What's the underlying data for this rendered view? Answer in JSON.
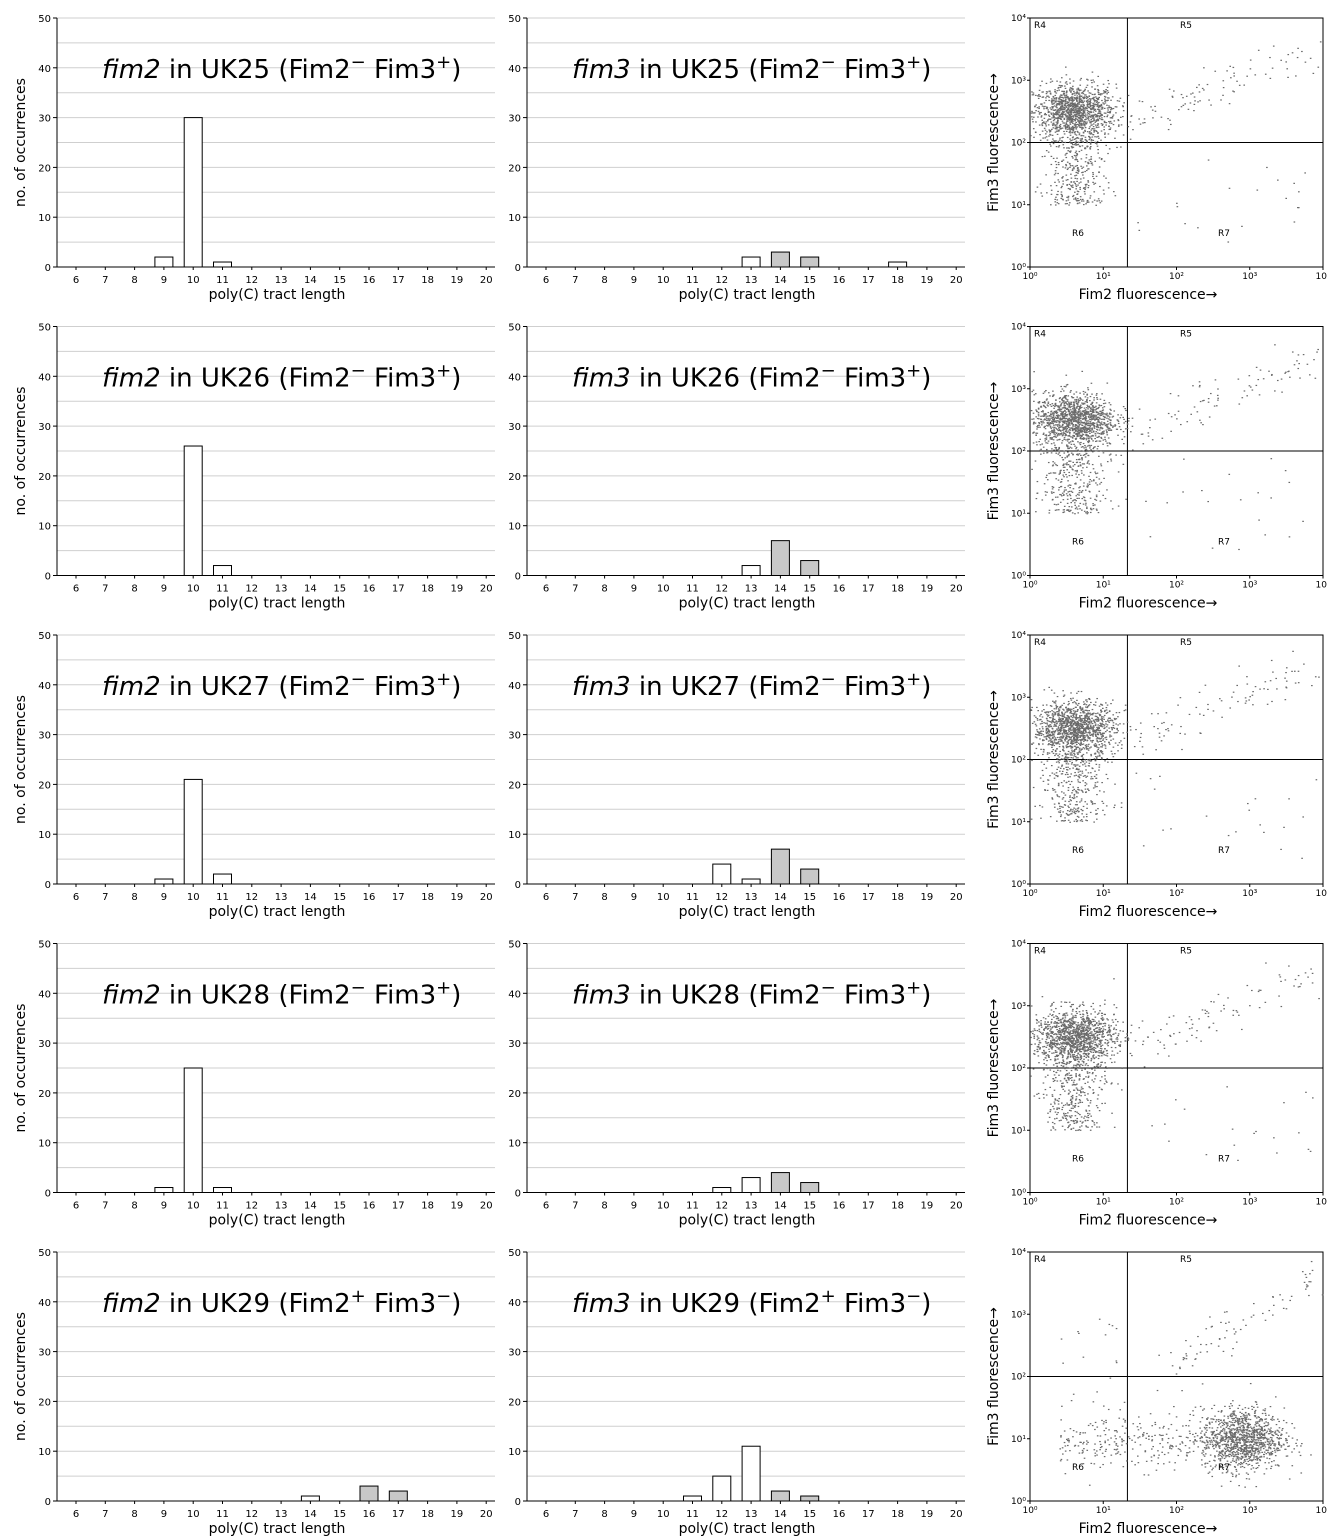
{
  "hist_xlabel": "poly(C) tract length",
  "hist_ylabel": "no. of occurrences",
  "hist_xticks": [
    "6",
    "7",
    "8",
    "9",
    "10",
    "11",
    "12",
    "13",
    "14",
    "15",
    "16",
    "17",
    "18",
    "19",
    "20"
  ],
  "hist_yticks": [
    "0",
    "10",
    "20",
    "30",
    "40",
    "50"
  ],
  "flow_xlabel": "Fim2  fluorescence→",
  "flow_ylabel": "Fim3 fluorescence→",
  "flow_ticks": [
    "10⁰",
    "10¹",
    "10²",
    "10³",
    "10⁴"
  ],
  "flow_regions": [
    "R4",
    "R5",
    "R6",
    "R7"
  ],
  "colors": {
    "bar_open": "#ffffff",
    "bar_shaded": "#c8c8c8",
    "dots": "#6a6a6a",
    "grid": "#cfcfcf"
  },
  "chart_data": [
    {
      "type": "bar",
      "panel": "fim2 in UK25",
      "title_gene": "fim2",
      "title_strain": " in UK25 (",
      "title_g1": "Fim2",
      "title_s1": "−",
      "title_g2": " Fim3",
      "title_s2": "+",
      "title_end": ")",
      "categories": [
        6,
        7,
        8,
        9,
        10,
        11,
        12,
        13,
        14,
        15,
        16,
        17,
        18,
        19,
        20
      ],
      "values": [
        0,
        0,
        0,
        2,
        30,
        1,
        0,
        0,
        0,
        0,
        0,
        0,
        0,
        0,
        0
      ],
      "shaded": [
        0,
        0,
        0,
        0,
        0,
        0,
        0,
        0,
        0,
        0,
        0,
        0,
        0,
        0,
        0
      ],
      "ylim": [
        0,
        50
      ]
    },
    {
      "type": "bar",
      "panel": "fim3 in UK25",
      "title_gene": "fim3",
      "title_strain": " in UK25 (",
      "title_g1": "Fim2",
      "title_s1": "−",
      "title_g2": " Fim3",
      "title_s2": "+",
      "title_end": ")",
      "categories": [
        6,
        7,
        8,
        9,
        10,
        11,
        12,
        13,
        14,
        15,
        16,
        17,
        18,
        19,
        20
      ],
      "values": [
        0,
        0,
        0,
        0,
        0,
        0,
        0,
        2,
        3,
        2,
        0,
        0,
        1,
        0,
        0
      ],
      "shaded": [
        0,
        0,
        0,
        0,
        0,
        0,
        0,
        0,
        1,
        1,
        0,
        0,
        0,
        0,
        0
      ],
      "ylim": [
        0,
        50
      ]
    },
    {
      "type": "scatter",
      "panel": "flow UK25",
      "cluster": "R4",
      "xlim": [
        "10⁰",
        "10⁴"
      ],
      "ylim": [
        "10⁰",
        "10⁴"
      ]
    },
    {
      "type": "bar",
      "panel": "fim2 in UK26",
      "title_gene": "fim2",
      "title_strain": " in UK26 (",
      "title_g1": "Fim2",
      "title_s1": "−",
      "title_g2": " Fim3",
      "title_s2": "+",
      "title_end": ")",
      "categories": [
        6,
        7,
        8,
        9,
        10,
        11,
        12,
        13,
        14,
        15,
        16,
        17,
        18,
        19,
        20
      ],
      "values": [
        0,
        0,
        0,
        0,
        26,
        2,
        0,
        0,
        0,
        0,
        0,
        0,
        0,
        0,
        0
      ],
      "shaded": [
        0,
        0,
        0,
        0,
        0,
        0,
        0,
        0,
        0,
        0,
        0,
        0,
        0,
        0,
        0
      ],
      "ylim": [
        0,
        50
      ]
    },
    {
      "type": "bar",
      "panel": "fim3 in UK26",
      "title_gene": "fim3",
      "title_strain": " in UK26 (",
      "title_g1": "Fim2",
      "title_s1": "−",
      "title_g2": " Fim3",
      "title_s2": "+",
      "title_end": ")",
      "categories": [
        6,
        7,
        8,
        9,
        10,
        11,
        12,
        13,
        14,
        15,
        16,
        17,
        18,
        19,
        20
      ],
      "values": [
        0,
        0,
        0,
        0,
        0,
        0,
        0,
        2,
        7,
        3,
        0,
        0,
        0,
        0,
        0
      ],
      "shaded": [
        0,
        0,
        0,
        0,
        0,
        0,
        0,
        0,
        1,
        1,
        0,
        0,
        0,
        0,
        0
      ],
      "ylim": [
        0,
        50
      ]
    },
    {
      "type": "scatter",
      "panel": "flow UK26",
      "cluster": "R4",
      "xlim": [
        "10⁰",
        "10⁴"
      ],
      "ylim": [
        "10⁰",
        "10⁴"
      ]
    },
    {
      "type": "bar",
      "panel": "fim2 in UK27",
      "title_gene": "fim2",
      "title_strain": " in UK27 (",
      "title_g1": "Fim2",
      "title_s1": "−",
      "title_g2": " Fim3",
      "title_s2": "+",
      "title_end": ")",
      "categories": [
        6,
        7,
        8,
        9,
        10,
        11,
        12,
        13,
        14,
        15,
        16,
        17,
        18,
        19,
        20
      ],
      "values": [
        0,
        0,
        0,
        1,
        21,
        2,
        0,
        0,
        0,
        0,
        0,
        0,
        0,
        0,
        0
      ],
      "shaded": [
        0,
        0,
        0,
        0,
        0,
        0,
        0,
        0,
        0,
        0,
        0,
        0,
        0,
        0,
        0
      ],
      "ylim": [
        0,
        50
      ]
    },
    {
      "type": "bar",
      "panel": "fim3 in UK27",
      "title_gene": "fim3",
      "title_strain": " in UK27 (",
      "title_g1": "Fim2",
      "title_s1": "−",
      "title_g2": " Fim3",
      "title_s2": "+",
      "title_end": ")",
      "categories": [
        6,
        7,
        8,
        9,
        10,
        11,
        12,
        13,
        14,
        15,
        16,
        17,
        18,
        19,
        20
      ],
      "values": [
        0,
        0,
        0,
        0,
        0,
        0,
        4,
        1,
        7,
        3,
        0,
        0,
        0,
        0,
        0
      ],
      "shaded": [
        0,
        0,
        0,
        0,
        0,
        0,
        0,
        0,
        1,
        1,
        0,
        0,
        0,
        0,
        0
      ],
      "ylim": [
        0,
        50
      ]
    },
    {
      "type": "scatter",
      "panel": "flow UK27",
      "cluster": "R4",
      "xlim": [
        "10⁰",
        "10⁴"
      ],
      "ylim": [
        "10⁰",
        "10⁴"
      ]
    },
    {
      "type": "bar",
      "panel": "fim2 in UK28",
      "title_gene": "fim2",
      "title_strain": " in UK28 (",
      "title_g1": "Fim2",
      "title_s1": "−",
      "title_g2": " Fim3",
      "title_s2": "+",
      "title_end": ")",
      "categories": [
        6,
        7,
        8,
        9,
        10,
        11,
        12,
        13,
        14,
        15,
        16,
        17,
        18,
        19,
        20
      ],
      "values": [
        0,
        0,
        0,
        1,
        25,
        1,
        0,
        0,
        0,
        0,
        0,
        0,
        0,
        0,
        0
      ],
      "shaded": [
        0,
        0,
        0,
        0,
        0,
        0,
        0,
        0,
        0,
        0,
        0,
        0,
        0,
        0,
        0
      ],
      "ylim": [
        0,
        50
      ]
    },
    {
      "type": "bar",
      "panel": "fim3 in UK28",
      "title_gene": "fim3",
      "title_strain": " in UK28 (",
      "title_g1": "Fim2",
      "title_s1": "−",
      "title_g2": " Fim3",
      "title_s2": "+",
      "title_end": ")",
      "categories": [
        6,
        7,
        8,
        9,
        10,
        11,
        12,
        13,
        14,
        15,
        16,
        17,
        18,
        19,
        20
      ],
      "values": [
        0,
        0,
        0,
        0,
        0,
        0,
        1,
        3,
        4,
        2,
        0,
        0,
        0,
        0,
        0
      ],
      "shaded": [
        0,
        0,
        0,
        0,
        0,
        0,
        0,
        0,
        1,
        1,
        0,
        0,
        0,
        0,
        0
      ],
      "ylim": [
        0,
        50
      ]
    },
    {
      "type": "scatter",
      "panel": "flow UK28",
      "cluster": "R4",
      "xlim": [
        "10⁰",
        "10⁴"
      ],
      "ylim": [
        "10⁰",
        "10⁴"
      ]
    },
    {
      "type": "bar",
      "panel": "fim2 in UK29",
      "title_gene": "fim2",
      "title_strain": " in UK29 (",
      "title_g1": "Fim2",
      "title_s1": "+",
      "title_g2": " Fim3",
      "title_s2": "−",
      "title_end": ")",
      "categories": [
        6,
        7,
        8,
        9,
        10,
        11,
        12,
        13,
        14,
        15,
        16,
        17,
        18,
        19,
        20
      ],
      "values": [
        0,
        0,
        0,
        0,
        0,
        0,
        0,
        0,
        1,
        0,
        3,
        2,
        0,
        0,
        0
      ],
      "shaded": [
        0,
        0,
        0,
        0,
        0,
        0,
        0,
        0,
        0,
        0,
        1,
        1,
        0,
        0,
        0
      ],
      "ylim": [
        0,
        50
      ]
    },
    {
      "type": "bar",
      "panel": "fim3 in UK29",
      "title_gene": "fim3",
      "title_strain": " in UK29 (",
      "title_g1": "Fim2",
      "title_s1": "+",
      "title_g2": " Fim3",
      "title_s2": "−",
      "title_end": ")",
      "categories": [
        6,
        7,
        8,
        9,
        10,
        11,
        12,
        13,
        14,
        15,
        16,
        17,
        18,
        19,
        20
      ],
      "values": [
        0,
        0,
        0,
        0,
        0,
        1,
        5,
        11,
        2,
        1,
        0,
        0,
        0,
        0,
        0
      ],
      "shaded": [
        0,
        0,
        0,
        0,
        0,
        0,
        0,
        0,
        1,
        1,
        0,
        0,
        0,
        0,
        0
      ],
      "ylim": [
        0,
        50
      ]
    },
    {
      "type": "scatter",
      "panel": "flow UK29",
      "cluster": "R7",
      "xlim": [
        "10⁰",
        "10⁴"
      ],
      "ylim": [
        "10⁰",
        "10⁴"
      ]
    }
  ]
}
